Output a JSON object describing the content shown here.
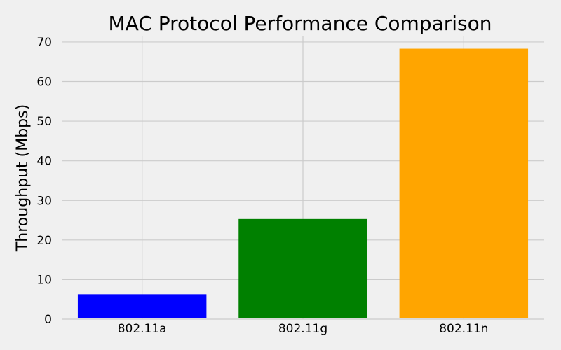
{
  "chart_data": {
    "type": "bar",
    "title": "MAC Protocol Performance Comparison",
    "xlabel": "",
    "ylabel": "Throughput (Mbps)",
    "categories": [
      "802.11a",
      "802.11g",
      "802.11n"
    ],
    "values": [
      6,
      25,
      68
    ],
    "colors": [
      "#0000ff",
      "#008000",
      "#ffa500"
    ],
    "ylim": [
      0,
      71.4
    ],
    "yticks": [
      0,
      10,
      20,
      30,
      40,
      50,
      60,
      70
    ],
    "grid": true,
    "background": "#f0f0f0",
    "grid_color": "#cbcbcb"
  }
}
